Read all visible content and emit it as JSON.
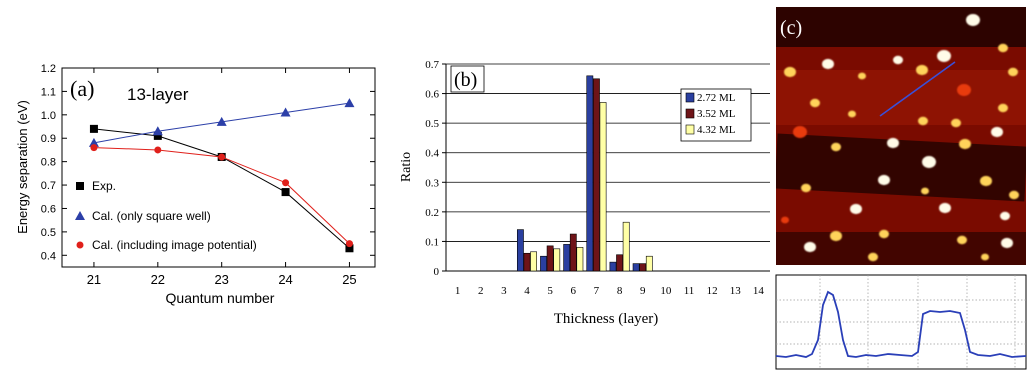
{
  "chart_data": [
    {
      "type": "line",
      "panel_label": "(a)",
      "annotation": "13-layer",
      "xlabel": "Quantum number",
      "ylabel": "Energy separation (eV)",
      "x": [
        21,
        22,
        23,
        24,
        25
      ],
      "xlim": [
        20.5,
        25.4
      ],
      "ylim": [
        0.35,
        1.2
      ],
      "yticks": [
        0.4,
        0.5,
        0.6,
        0.7,
        0.8,
        0.9,
        1.0,
        1.1,
        1.2
      ],
      "ytick_labels": [
        "0.4",
        "0.5",
        "0.6",
        "0.7",
        "0.8",
        "0.9",
        "1.0",
        "1.1",
        "1.2"
      ],
      "xtick_labels": [
        "21",
        "22",
        "23",
        "24",
        "25"
      ],
      "legend_position": "bottom-left",
      "series": [
        {
          "name": "Exp.",
          "marker": "square",
          "color": "#000000",
          "values": [
            0.94,
            0.91,
            0.82,
            0.67,
            0.43
          ]
        },
        {
          "name": "Cal. (only square well)",
          "marker": "triangle",
          "color": "#2c3fa8",
          "values": [
            0.88,
            0.93,
            0.97,
            1.01,
            1.05
          ]
        },
        {
          "name": "Cal. (including image potential)",
          "marker": "circle",
          "color": "#e0201b",
          "values": [
            0.86,
            0.85,
            0.82,
            0.71,
            0.45
          ]
        }
      ]
    },
    {
      "type": "bar",
      "panel_label": "(b)",
      "xlabel": "Thickness (layer)",
      "ylabel": "Ratio",
      "categories": [
        "1",
        "2",
        "3",
        "4",
        "5",
        "6",
        "7",
        "8",
        "9",
        "10",
        "11",
        "12",
        "13",
        "14"
      ],
      "ylim": [
        0,
        0.7
      ],
      "yticks": [
        0,
        0.1,
        0.2,
        0.3,
        0.4,
        0.5,
        0.6,
        0.7
      ],
      "ytick_labels": [
        "0",
        "0.1",
        "0.2",
        "0.3",
        "0.4",
        "0.5",
        "0.6",
        "0.7"
      ],
      "grid": true,
      "legend_position": "top-right",
      "series": [
        {
          "name": "2.72 ML",
          "color": "#2a3fa0",
          "values": [
            0,
            0,
            0,
            0.14,
            0.05,
            0.09,
            0.66,
            0.03,
            0.025,
            0,
            0,
            0,
            0,
            0
          ]
        },
        {
          "name": "3.52 ML",
          "color": "#6e1418",
          "values": [
            0,
            0,
            0,
            0.06,
            0.085,
            0.125,
            0.65,
            0.055,
            0.025,
            0,
            0,
            0,
            0,
            0
          ]
        },
        {
          "name": "4.32 ML",
          "color": "#ffffa6",
          "values": [
            0,
            0,
            0,
            0.065,
            0.075,
            0.08,
            0.57,
            0.165,
            0.05,
            0,
            0,
            0,
            0,
            0
          ]
        }
      ]
    },
    {
      "type": "image",
      "panel_label": "(c)",
      "colormap": [
        "#140200",
        "#7a0b00",
        "#e83a10",
        "#ffd35a",
        "#fffbe8"
      ],
      "scan_line_color": "#3a4fd8",
      "profile_color": "#2a3fb8"
    }
  ]
}
